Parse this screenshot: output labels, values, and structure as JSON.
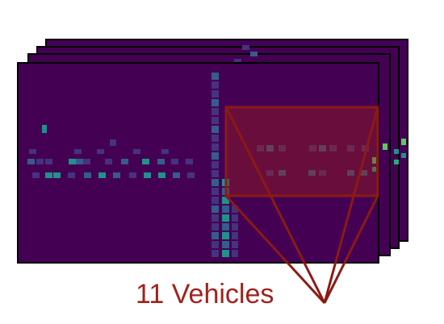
{
  "caption": "11 Vehicles",
  "colors": {
    "background": "#440154",
    "frame_border": "#000000",
    "highlight": "#8b1a14",
    "highlight_fill": "rgba(150,30,30,0.45)",
    "caption_color": "#a0231d",
    "cell_dim": "#46327e",
    "cell_mid": "#365c8d",
    "cell_teal": "#21918c",
    "cell_bright": "#27ad81",
    "cell_green": "#5ec962"
  },
  "stack": {
    "frames": 4,
    "frame_fill_icon": "heatmap-frame"
  }
}
